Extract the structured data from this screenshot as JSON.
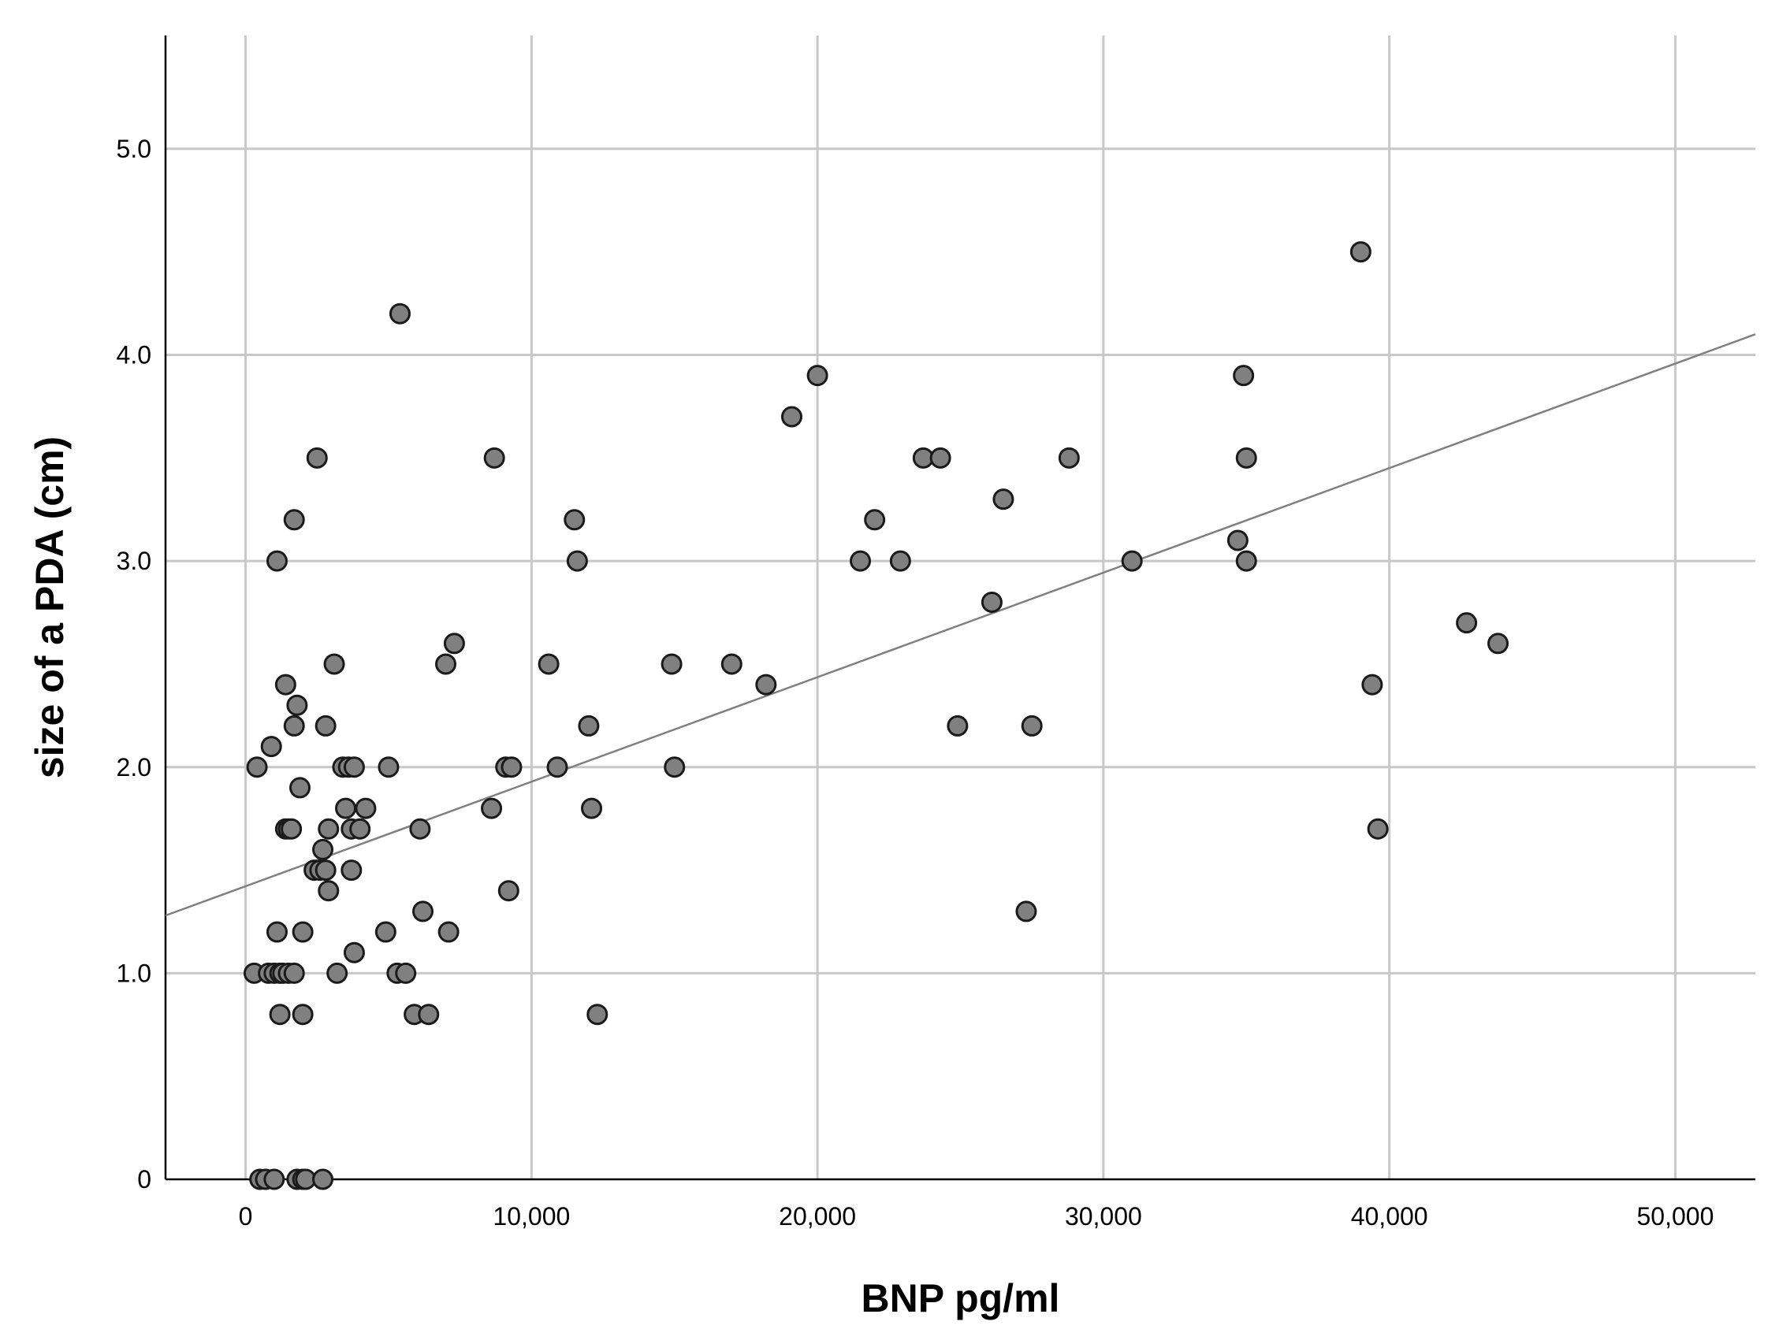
{
  "chart_data": {
    "type": "scatter",
    "xlabel": "BNP pg/ml",
    "ylabel": "size of a PDA (cm)",
    "xlim": [
      -2800,
      52800
    ],
    "ylim": [
      0,
      5.55
    ],
    "x_ticks": [
      0,
      10000,
      20000,
      30000,
      40000,
      50000
    ],
    "x_tick_labels": [
      "0",
      "10,000",
      "20,000",
      "30,000",
      "40,000",
      "50,000"
    ],
    "y_ticks": [
      0,
      1,
      2,
      3,
      4,
      5
    ],
    "y_tick_labels": [
      "0",
      "1.0",
      "2.0",
      "3.0",
      "4.0",
      "5.0"
    ],
    "grid": true,
    "colors": {
      "point": "#808080",
      "fit_line": "#808080",
      "grid": "#c8c8c8"
    },
    "fit_line": {
      "x": [
        -2800,
        52800
      ],
      "y": [
        1.28,
        4.1
      ]
    },
    "points": [
      {
        "x": 400,
        "y": 2.0
      },
      {
        "x": 300,
        "y": 1.0
      },
      {
        "x": 500,
        "y": 0.0
      },
      {
        "x": 700,
        "y": 0.0
      },
      {
        "x": 800,
        "y": 1.0
      },
      {
        "x": 900,
        "y": 2.1
      },
      {
        "x": 1000,
        "y": 1.0
      },
      {
        "x": 1000,
        "y": 0.0
      },
      {
        "x": 1100,
        "y": 1.2
      },
      {
        "x": 1100,
        "y": 3.0
      },
      {
        "x": 1200,
        "y": 1.0
      },
      {
        "x": 1200,
        "y": 0.8
      },
      {
        "x": 1300,
        "y": 1.0
      },
      {
        "x": 1400,
        "y": 2.4
      },
      {
        "x": 1400,
        "y": 1.7
      },
      {
        "x": 1500,
        "y": 1.0
      },
      {
        "x": 1500,
        "y": 1.7
      },
      {
        "x": 1600,
        "y": 1.7
      },
      {
        "x": 1700,
        "y": 1.0
      },
      {
        "x": 1700,
        "y": 2.2
      },
      {
        "x": 1700,
        "y": 3.2
      },
      {
        "x": 1800,
        "y": 2.3
      },
      {
        "x": 1800,
        "y": 0.0
      },
      {
        "x": 1900,
        "y": 1.9
      },
      {
        "x": 2000,
        "y": 1.2
      },
      {
        "x": 2000,
        "y": 0.8
      },
      {
        "x": 2000,
        "y": 0.0
      },
      {
        "x": 2100,
        "y": 0.0
      },
      {
        "x": 2400,
        "y": 1.5
      },
      {
        "x": 2500,
        "y": 3.5
      },
      {
        "x": 2600,
        "y": 1.5
      },
      {
        "x": 2700,
        "y": 1.6
      },
      {
        "x": 2700,
        "y": 0.0
      },
      {
        "x": 2800,
        "y": 2.2
      },
      {
        "x": 2800,
        "y": 1.5
      },
      {
        "x": 2900,
        "y": 1.7
      },
      {
        "x": 2900,
        "y": 1.4
      },
      {
        "x": 3100,
        "y": 2.5
      },
      {
        "x": 3200,
        "y": 1.0
      },
      {
        "x": 3400,
        "y": 2.0
      },
      {
        "x": 3500,
        "y": 1.8
      },
      {
        "x": 3600,
        "y": 2.0
      },
      {
        "x": 3700,
        "y": 1.7
      },
      {
        "x": 3700,
        "y": 1.5
      },
      {
        "x": 3800,
        "y": 2.0
      },
      {
        "x": 3800,
        "y": 1.1
      },
      {
        "x": 4000,
        "y": 1.7
      },
      {
        "x": 4200,
        "y": 1.8
      },
      {
        "x": 4900,
        "y": 1.2
      },
      {
        "x": 5000,
        "y": 2.0
      },
      {
        "x": 5300,
        "y": 1.0
      },
      {
        "x": 5400,
        "y": 4.2
      },
      {
        "x": 5600,
        "y": 1.0
      },
      {
        "x": 5900,
        "y": 0.8
      },
      {
        "x": 6100,
        "y": 1.7
      },
      {
        "x": 6200,
        "y": 1.3
      },
      {
        "x": 6400,
        "y": 0.8
      },
      {
        "x": 7000,
        "y": 2.5
      },
      {
        "x": 7100,
        "y": 1.2
      },
      {
        "x": 7300,
        "y": 2.6
      },
      {
        "x": 8600,
        "y": 1.8
      },
      {
        "x": 8700,
        "y": 3.5
      },
      {
        "x": 9100,
        "y": 2.0
      },
      {
        "x": 9200,
        "y": 1.4
      },
      {
        "x": 9300,
        "y": 2.0
      },
      {
        "x": 10600,
        "y": 2.5
      },
      {
        "x": 10900,
        "y": 2.0
      },
      {
        "x": 11500,
        "y": 3.2
      },
      {
        "x": 11600,
        "y": 3.0
      },
      {
        "x": 12000,
        "y": 2.2
      },
      {
        "x": 12100,
        "y": 1.8
      },
      {
        "x": 12300,
        "y": 0.8
      },
      {
        "x": 14900,
        "y": 2.5
      },
      {
        "x": 15000,
        "y": 2.0
      },
      {
        "x": 17000,
        "y": 2.5
      },
      {
        "x": 18200,
        "y": 2.4
      },
      {
        "x": 19100,
        "y": 3.7
      },
      {
        "x": 20000,
        "y": 3.9
      },
      {
        "x": 21500,
        "y": 3.0
      },
      {
        "x": 22000,
        "y": 3.2
      },
      {
        "x": 22900,
        "y": 3.0
      },
      {
        "x": 23700,
        "y": 3.5
      },
      {
        "x": 24300,
        "y": 3.5
      },
      {
        "x": 24900,
        "y": 2.2
      },
      {
        "x": 26100,
        "y": 2.8
      },
      {
        "x": 26500,
        "y": 3.3
      },
      {
        "x": 27300,
        "y": 1.3
      },
      {
        "x": 27500,
        "y": 2.2
      },
      {
        "x": 28800,
        "y": 3.5
      },
      {
        "x": 31000,
        "y": 3.0
      },
      {
        "x": 34700,
        "y": 3.1
      },
      {
        "x": 34900,
        "y": 3.9
      },
      {
        "x": 35000,
        "y": 3.5
      },
      {
        "x": 35000,
        "y": 3.0
      },
      {
        "x": 39000,
        "y": 4.5
      },
      {
        "x": 39400,
        "y": 2.4
      },
      {
        "x": 39600,
        "y": 1.7
      },
      {
        "x": 42700,
        "y": 2.7
      },
      {
        "x": 43800,
        "y": 2.6
      }
    ]
  }
}
